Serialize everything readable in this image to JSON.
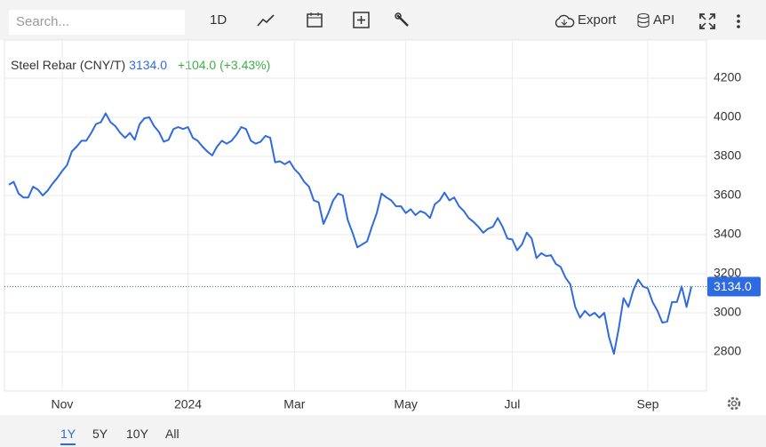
{
  "toolbar": {
    "search_placeholder": "Search...",
    "interval": "1D",
    "export": "Export",
    "api": "API"
  },
  "ranges": [
    "1Y",
    "5Y",
    "10Y",
    "All"
  ],
  "chart_data": {
    "type": "line",
    "title": "Steel Rebar (CNY/T)",
    "last_price_label": "3134.0",
    "change": "+104.0 (+3.43%)",
    "categories": [
      null,
      null,
      null,
      null,
      null,
      null,
      null,
      null,
      null,
      null,
      null,
      "Nov",
      null,
      null,
      null,
      null,
      null,
      null,
      null,
      null,
      null,
      null,
      null,
      null,
      null,
      null,
      null,
      null,
      null,
      null,
      null,
      null,
      null,
      null,
      null,
      null,
      null,
      "2024",
      null,
      null,
      null,
      null,
      null,
      null,
      null,
      null,
      null,
      null,
      null,
      null,
      null,
      null,
      null,
      null,
      null,
      null,
      null,
      null,
      null,
      "Mar",
      null,
      null,
      null,
      null,
      null,
      null,
      null,
      null,
      null,
      null,
      null,
      null,
      null,
      null,
      null,
      null,
      null,
      null,
      null,
      null,
      null,
      null,
      "May",
      null,
      null,
      null,
      null,
      null,
      null,
      null,
      null,
      null,
      null,
      null,
      null,
      null,
      null,
      null,
      null,
      null,
      null,
      null,
      null,
      null,
      "Jul",
      null,
      null,
      null,
      null,
      null,
      null,
      null,
      null,
      null,
      null,
      null,
      null,
      null,
      null,
      null,
      null,
      null,
      null,
      null,
      null,
      null,
      null,
      null,
      null,
      null,
      null,
      null,
      "Sep",
      null,
      null,
      null,
      null,
      null,
      null,
      null,
      null,
      null
    ],
    "series": [
      {
        "name": "Steel Rebar",
        "color": "#2f6be0",
        "values": [
          3655,
          3670,
          3610,
          3590,
          3590,
          3645,
          3630,
          3600,
          3625,
          3660,
          3690,
          3725,
          3755,
          3825,
          3850,
          3880,
          3880,
          3920,
          3965,
          3975,
          4020,
          3975,
          3955,
          3920,
          3895,
          3920,
          3885,
          3965,
          3995,
          4000,
          3955,
          3925,
          3875,
          3885,
          3940,
          3950,
          3940,
          3950,
          3895,
          3880,
          3850,
          3825,
          3805,
          3850,
          3880,
          3865,
          3880,
          3910,
          3950,
          3940,
          3880,
          3865,
          3875,
          3905,
          3895,
          3770,
          3775,
          3760,
          3775,
          3735,
          3710,
          3670,
          3645,
          3575,
          3565,
          3455,
          3510,
          3575,
          3610,
          3600,
          3475,
          3410,
          3335,
          3350,
          3365,
          3440,
          3510,
          3610,
          3590,
          3575,
          3545,
          3545,
          3510,
          3530,
          3500,
          3520,
          3510,
          3485,
          3555,
          3575,
          3615,
          3575,
          3590,
          3545,
          3520,
          3485,
          3465,
          3440,
          3410,
          3430,
          3440,
          3485,
          3440,
          3380,
          3375,
          3320,
          3350,
          3410,
          3380,
          3280,
          3305,
          3290,
          3295,
          3250,
          3235,
          3180,
          3145,
          3030,
          2975,
          3010,
          2985,
          3000,
          2975,
          3000,
          2875,
          2790,
          2920,
          3075,
          3030,
          3115,
          3170,
          3135,
          3125,
          3055,
          3010,
          2950,
          2955,
          3055,
          3055,
          3135,
          3030,
          3134
        ]
      }
    ],
    "ylim": [
      2600,
      4400
    ],
    "yticks": [
      2800,
      3000,
      3200,
      3400,
      3600,
      3800,
      4000,
      4200
    ],
    "grid": true
  }
}
